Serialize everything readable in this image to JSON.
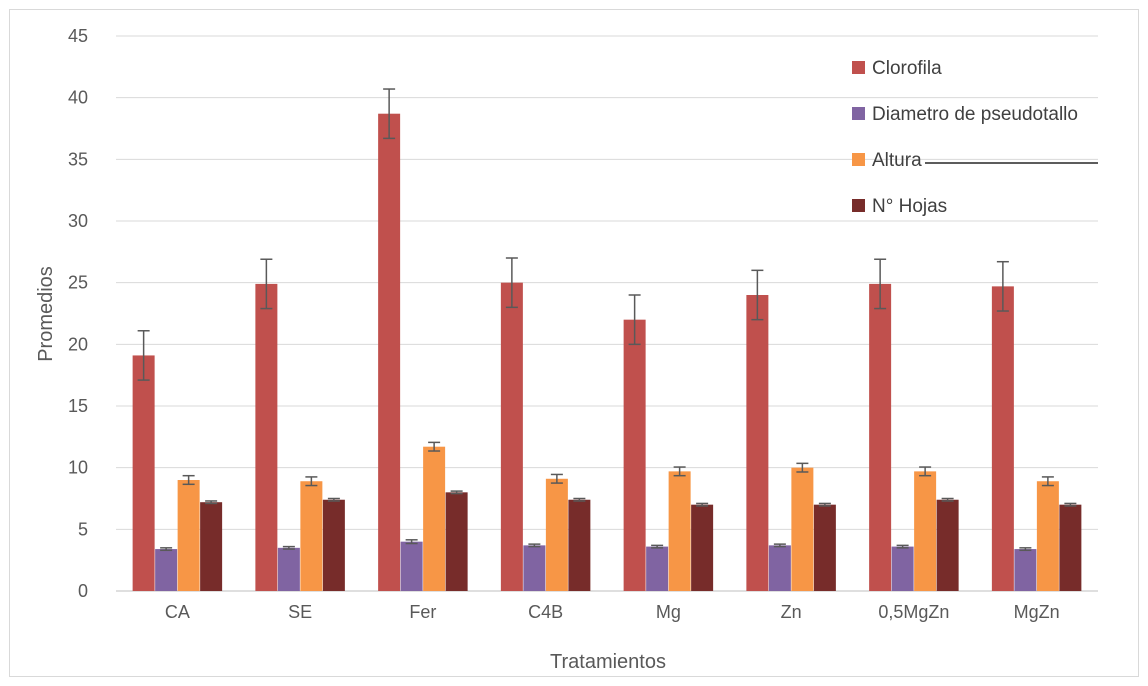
{
  "chart_data": {
    "type": "bar",
    "title": "",
    "xlabel": "Tratamientos",
    "ylabel": "Promedios",
    "ylim": [
      0,
      45
    ],
    "yticks": [
      0,
      5,
      10,
      15,
      20,
      25,
      30,
      35,
      40,
      45
    ],
    "grid": true,
    "legend_position": "top-right",
    "categories": [
      "CA",
      "SE",
      "Fer",
      "C4B",
      "Mg",
      "Zn",
      "0,5MgZn",
      "MgZn"
    ],
    "series": [
      {
        "name": "Clorofila",
        "color": "#c0504d",
        "values": [
          19.1,
          24.9,
          38.7,
          25.0,
          22.0,
          24.0,
          24.9,
          24.7
        ],
        "errors": [
          2.0,
          2.0,
          2.0,
          2.0,
          2.0,
          2.0,
          2.0,
          2.0
        ]
      },
      {
        "name": "Diametro de pseudotallo",
        "color": "#8064a2",
        "values": [
          3.4,
          3.5,
          4.0,
          3.7,
          3.6,
          3.7,
          3.6,
          3.4
        ],
        "errors": [
          0.1,
          0.1,
          0.15,
          0.1,
          0.1,
          0.1,
          0.1,
          0.1
        ]
      },
      {
        "name": "Altura",
        "color": "#f79646",
        "values": [
          9.0,
          8.9,
          11.7,
          9.1,
          9.7,
          10.0,
          9.7,
          8.9
        ],
        "errors": [
          0.35,
          0.35,
          0.35,
          0.35,
          0.35,
          0.35,
          0.35,
          0.35
        ]
      },
      {
        "name": "N° Hojas",
        "color": "#772c2a",
        "values": [
          7.2,
          7.4,
          8.0,
          7.4,
          7.0,
          7.0,
          7.4,
          7.0
        ],
        "errors": [
          0.1,
          0.1,
          0.1,
          0.1,
          0.1,
          0.1,
          0.1,
          0.1
        ]
      }
    ]
  }
}
